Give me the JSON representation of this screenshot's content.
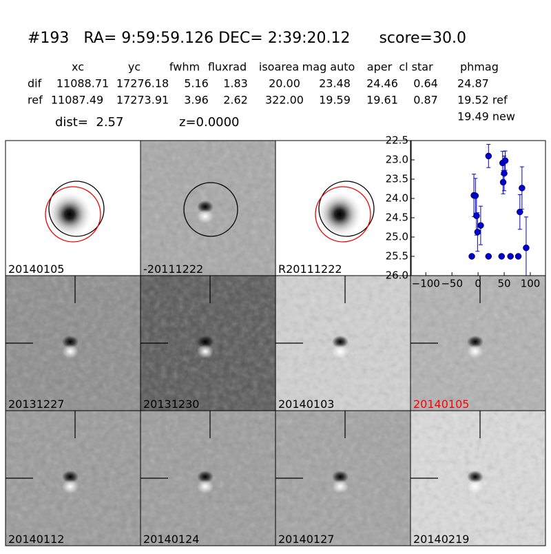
{
  "header": {
    "title": "#193   RA= 9:59:59.126 DEC= 2:39:20.12      score=30.0"
  },
  "table": {
    "columns": [
      "xc",
      "yc",
      "fwhm",
      "fluxrad",
      "isoarea",
      "mag auto",
      "aper",
      "cl star",
      "phmag"
    ],
    "rows": [
      [
        "dif",
        "11088.71",
        "17276.18",
        "5.16",
        "1.83",
        "20.00",
        "23.48",
        "24.46",
        "0.64",
        "24.87"
      ],
      [
        "ref",
        "11087.49",
        "17273.91",
        "3.96",
        "2.62",
        "322.00",
        "19.59",
        "19.61",
        "0.87",
        "19.52 ref"
      ]
    ],
    "extra": "19.49 new"
  },
  "dist": "dist=  2.57",
  "z": "z=0.0000",
  "panels": [
    {
      "label": "20140105"
    },
    {
      "label": "-20111222"
    },
    {
      "label": "R20111222"
    },
    {
      "label": "20131227"
    },
    {
      "label": "20131230"
    },
    {
      "label": "20140103"
    },
    {
      "label": "20140105",
      "color": "#ff0000"
    },
    {
      "label": "20140112"
    },
    {
      "label": "20140124"
    },
    {
      "label": "20140127"
    },
    {
      "label": "20140219"
    }
  ],
  "chart_data": {
    "type": "scatter",
    "series": [
      {
        "color": "#0000cc",
        "x": [
          -12,
          -8,
          -5,
          -3,
          -1,
          5,
          20,
          20,
          45,
          47,
          48,
          50,
          52,
          62,
          77,
          80,
          84,
          92
        ],
        "values": [
          25.5,
          23.92,
          23.93,
          24.45,
          24.87,
          24.7,
          22.9,
          25.5,
          25.5,
          23.08,
          23.58,
          23.35,
          23.02,
          25.5,
          25.5,
          24.35,
          23.73,
          25.28
        ],
        "errors": [
          0.05,
          0.55,
          0.45,
          0.5,
          0.5,
          0.5,
          0.3,
          0.05,
          0.05,
          0.3,
          0.3,
          0.45,
          0.25,
          0.05,
          0.05,
          0.45,
          0.55,
          0.8
        ]
      }
    ],
    "xlim": [
      -128,
      129
    ],
    "xticks": [
      {
        "value": -100,
        "label": "−100"
      },
      {
        "value": -50,
        "label": "−50"
      },
      0,
      50,
      100
    ],
    "ylim": [
      26,
      22.5
    ],
    "yticks": [
      22.5,
      {
        "value": 23,
        "label": "23.0"
      },
      23.5,
      {
        "value": 24,
        "label": "24.0"
      },
      24.5,
      {
        "value": 25,
        "label": "25.0"
      },
      25.5,
      {
        "value": 26,
        "label": "26.0"
      }
    ]
  }
}
